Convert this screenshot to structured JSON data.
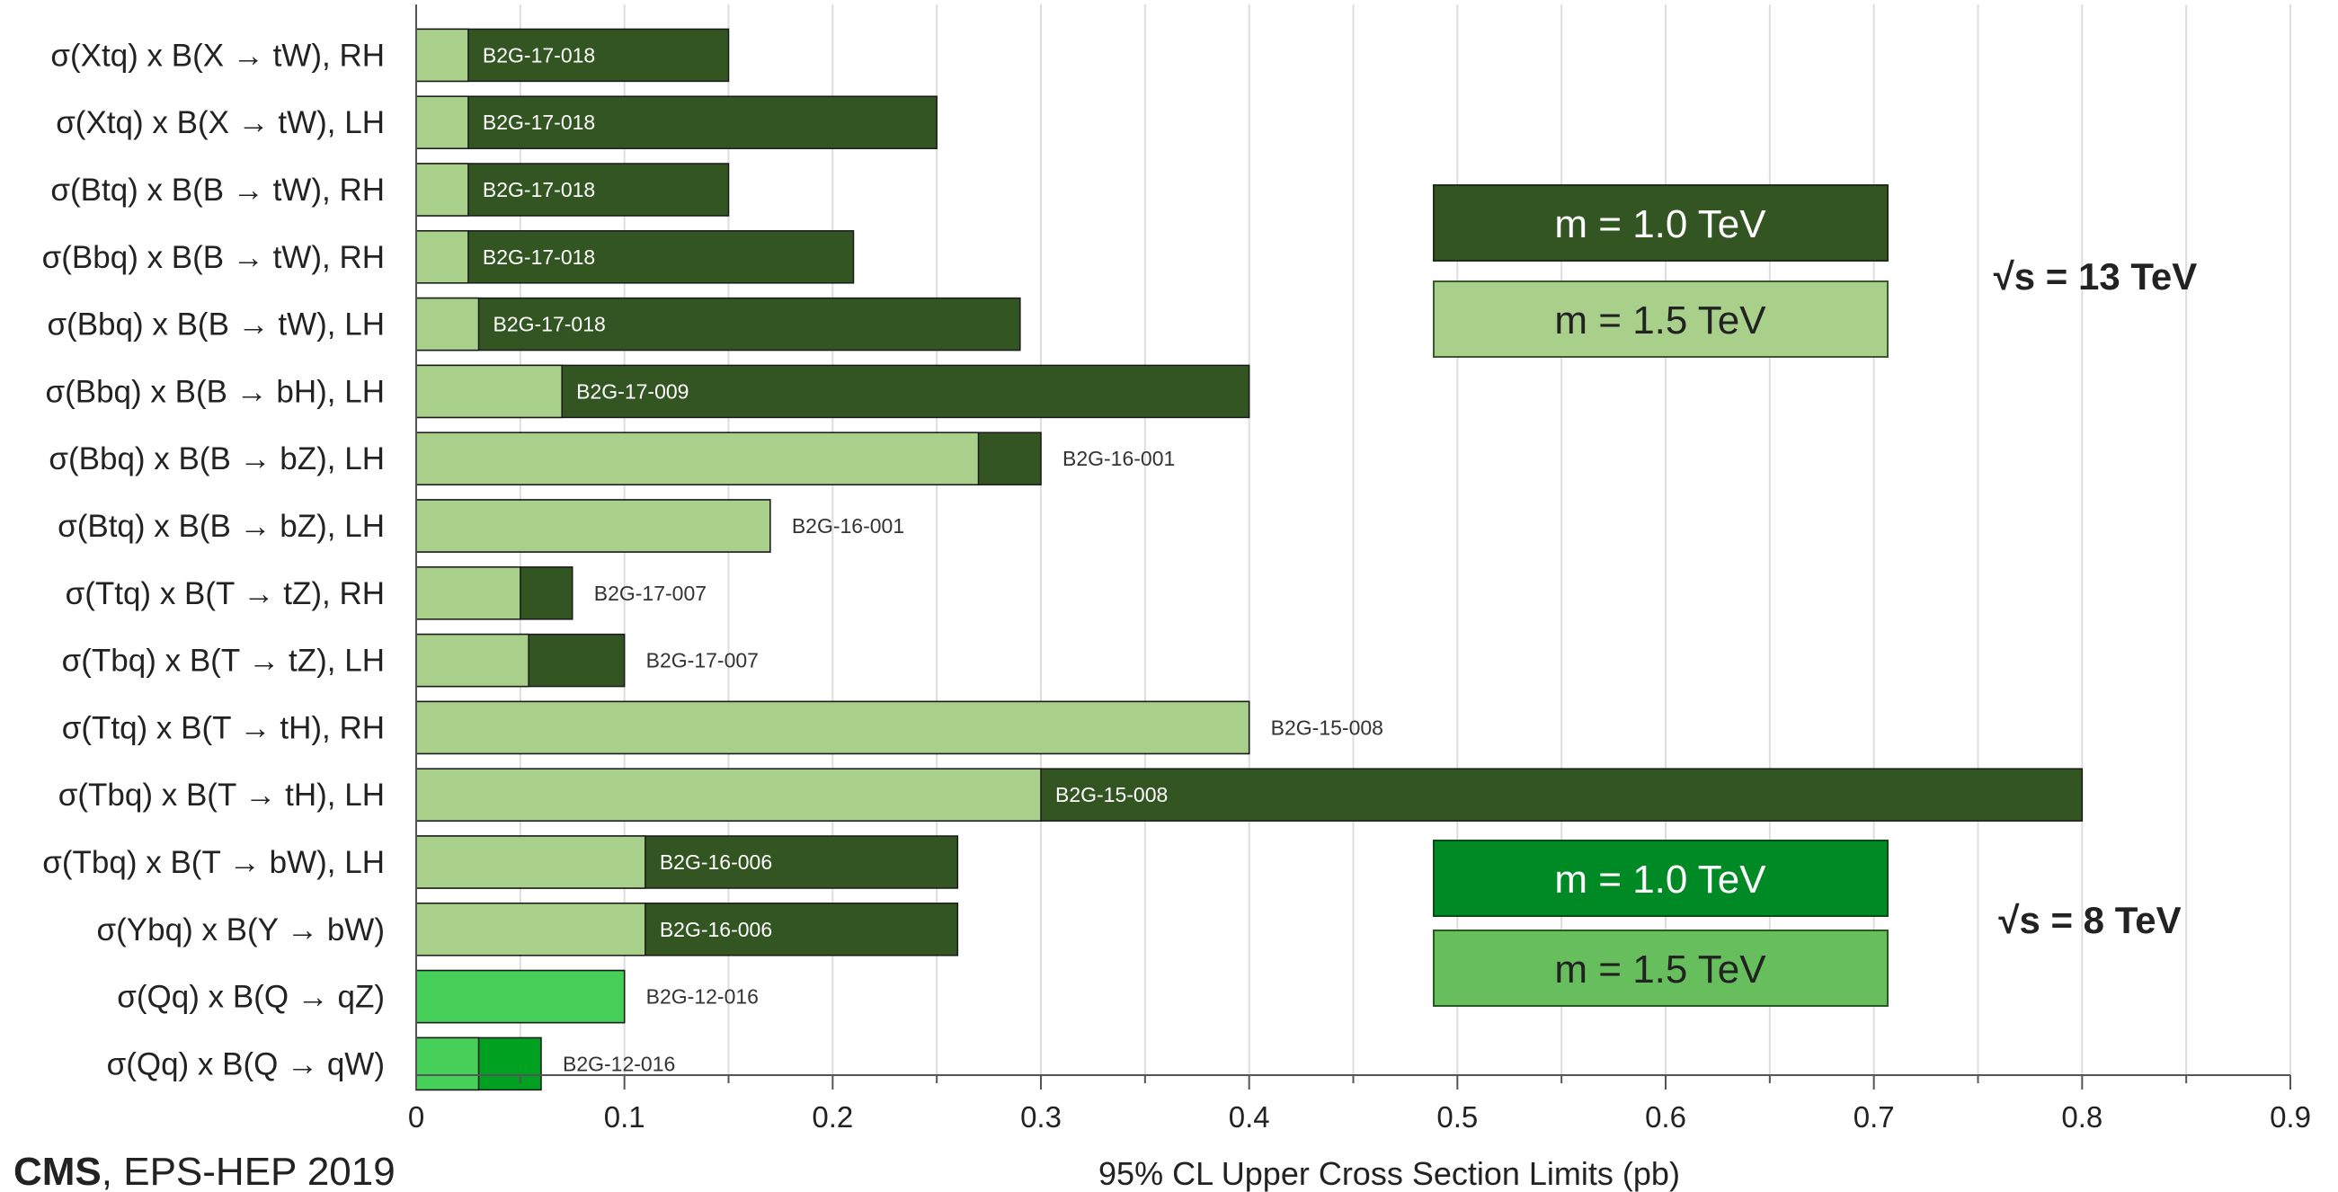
{
  "chart_data": {
    "type": "bar",
    "orientation": "horizontal",
    "xlabel": "95% CL Upper Cross Section Limits (pb)",
    "xlim": [
      0,
      0.9
    ],
    "xticks": [
      "0",
      "0.1",
      "0.2",
      "0.3",
      "0.4",
      "0.5",
      "0.6",
      "0.7",
      "0.8",
      "0.9"
    ],
    "grid": "vertical",
    "colors": {
      "dark_13": "#335522",
      "light_13": "#a8d08b",
      "dark_8": "#00a020",
      "light_8": "#46d05a",
      "legend_dark_8": "#008a25",
      "legend_light_8": "#66bf5c"
    },
    "rows": [
      {
        "label": "σ(Xtq) x B(X → tW), RH",
        "m1000": 0.15,
        "m1500": 0.025,
        "tag": "B2G-17-018",
        "energy": "13"
      },
      {
        "label": "σ(Xtq) x B(X → tW), LH",
        "m1000": 0.25,
        "m1500": 0.025,
        "tag": "B2G-17-018",
        "energy": "13"
      },
      {
        "label": "σ(Btq) x B(B → tW), RH",
        "m1000": 0.15,
        "m1500": 0.025,
        "tag": "B2G-17-018",
        "energy": "13"
      },
      {
        "label": "σ(Bbq) x B(B → tW), RH",
        "m1000": 0.21,
        "m1500": 0.025,
        "tag": "B2G-17-018",
        "energy": "13"
      },
      {
        "label": "σ(Bbq) x B(B → tW), LH",
        "m1000": 0.29,
        "m1500": 0.03,
        "tag": "B2G-17-018",
        "energy": "13"
      },
      {
        "label": "σ(Bbq) x B(B → bH), LH",
        "m1000": 0.4,
        "m1500": 0.07,
        "tag": "B2G-17-009",
        "energy": "13"
      },
      {
        "label": "σ(Bbq) x B(B → bZ), LH",
        "m1000": 0.3,
        "m1500": 0.27,
        "tag": "B2G-16-001",
        "energy": "13"
      },
      {
        "label": "σ(Btq) x B(B → bZ), LH",
        "m1000": 0.17,
        "m1500": 0.17,
        "tag": "B2G-16-001",
        "energy": "13"
      },
      {
        "label": "σ(Ttq) x B(T → tZ), RH",
        "m1000": 0.075,
        "m1500": 0.05,
        "tag": "B2G-17-007",
        "energy": "13"
      },
      {
        "label": "σ(Tbq) x B(T → tZ), LH",
        "m1000": 0.1,
        "m1500": 0.054,
        "tag": "B2G-17-007",
        "energy": "13"
      },
      {
        "label": "σ(Ttq) x B(T → tH), RH",
        "m1000": 0.4,
        "m1500": 0.4,
        "tag": "B2G-15-008",
        "energy": "13"
      },
      {
        "label": "σ(Tbq) x B(T → tH), LH",
        "m1000": 0.8,
        "m1500": 0.3,
        "tag": "B2G-15-008",
        "energy": "13"
      },
      {
        "label": "σ(Tbq) x B(T → bW), LH",
        "m1000": 0.26,
        "m1500": 0.11,
        "tag": "B2G-16-006",
        "energy": "13"
      },
      {
        "label": "σ(Ybq) x B(Y → bW)",
        "m1000": 0.26,
        "m1500": 0.11,
        "tag": "B2G-16-006",
        "energy": "13"
      },
      {
        "label": "σ(Qq) x B(Q → qZ)",
        "m1000": 0.1,
        "m1500": 0.1,
        "tag": "B2G-12-016",
        "energy": "8"
      },
      {
        "label": "σ(Qq) x B(Q → qW)",
        "m1000": 0.06,
        "m1500": 0.03,
        "tag": "B2G-12-016",
        "energy": "8"
      }
    ],
    "legend_13": {
      "dark": "m = 1.0 TeV",
      "light": "m = 1.5 TeV",
      "energy": "√s = 13 TeV"
    },
    "legend_8": {
      "dark": "m = 1.0 TeV",
      "light": "m = 1.5 TeV",
      "energy": "√s = 8 TeV"
    }
  },
  "footer": {
    "experiment": "CMS",
    "conference": ", EPS-HEP 2019"
  }
}
